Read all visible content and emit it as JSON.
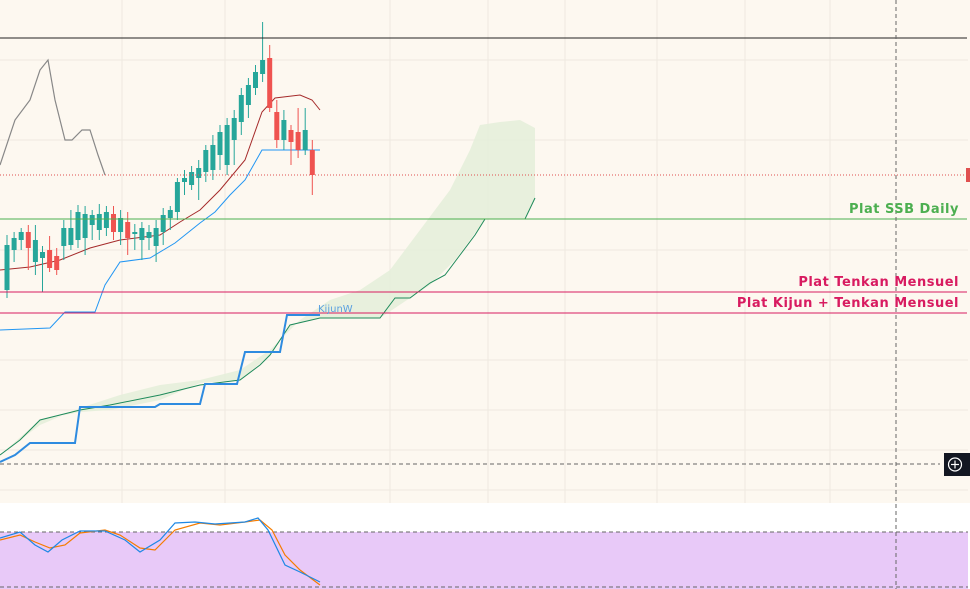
{
  "annotations": {
    "ssb_daily": "Plat SSB Daily",
    "tenkan_mensuel": "Plat Tenkan Mensuel",
    "kijun_tenkan_mensuel": "Plat Kijun + Tenkan Mensuel",
    "kijunw": "KijunW"
  }
}
